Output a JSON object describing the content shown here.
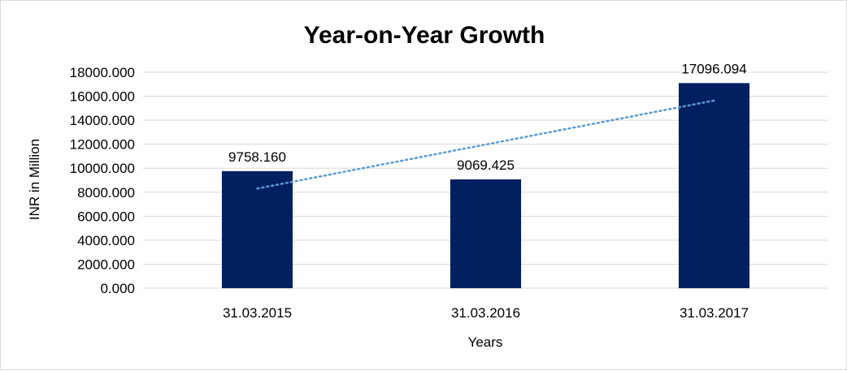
{
  "chart_data": {
    "type": "bar",
    "title": "Year-on-Year Growth",
    "xlabel": "Years",
    "ylabel": "INR in Million",
    "categories": [
      "31.03.2015",
      "31.03.2016",
      "31.03.2017"
    ],
    "values": [
      9758.16,
      9069.425,
      17096.094
    ],
    "data_labels": [
      "9758.160",
      "9069.425",
      "17096.094"
    ],
    "ylim": [
      0,
      18000
    ],
    "yticks": [
      0,
      2000,
      4000,
      6000,
      8000,
      10000,
      12000,
      14000,
      16000,
      18000
    ],
    "ytick_labels": [
      "0.000",
      "2000.000",
      "4000.000",
      "6000.000",
      "8000.000",
      "10000.000",
      "12000.000",
      "14000.000",
      "16000.000",
      "18000.000"
    ],
    "grid": true,
    "legend": "none",
    "trendline": {
      "type": "linear",
      "style": "dotted"
    },
    "colors": {
      "bar": "#002060",
      "trendline": "#5b9bd5",
      "grid": "#d9d9d9"
    }
  }
}
